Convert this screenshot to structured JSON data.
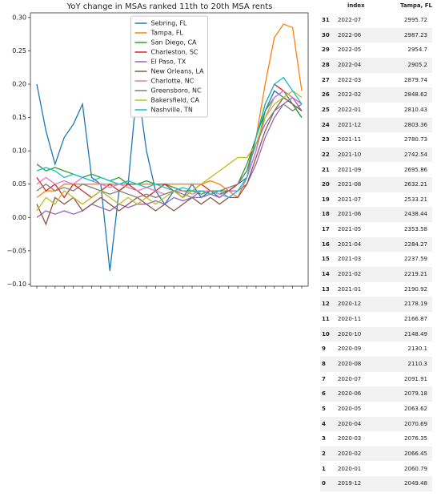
{
  "chart_data": {
    "type": "line",
    "title": "YoY change in MSAs ranked 11th to 20th MSA rents",
    "categories": [
      null,
      null,
      null,
      null,
      null,
      null,
      null,
      null,
      null,
      null,
      null,
      null,
      null,
      null,
      null,
      null,
      null,
      null,
      null,
      null,
      null,
      null,
      null,
      null,
      null,
      null,
      null,
      null,
      null,
      null
    ],
    "ylim": [
      -0.103,
      0.307
    ],
    "yticks": [
      {
        "value": -0.1,
        "label": "−0.10"
      },
      {
        "value": -0.05,
        "label": "−0.05"
      },
      {
        "value": 0,
        "label": "0.00"
      },
      {
        "value": 0.05,
        "label": "0.05"
      },
      {
        "value": 0.1,
        "label": "0.10"
      },
      {
        "value": 0.15,
        "label": "0.15"
      },
      {
        "value": 0.2,
        "label": "0.20"
      },
      {
        "value": 0.25,
        "label": "0.25"
      },
      {
        "value": 0.3,
        "label": "0.30"
      }
    ],
    "grid": false,
    "legend": "upper center",
    "series": [
      {
        "name": "Sebring, FL",
        "color": "#1f77b4",
        "values": [
          0.2,
          0.13,
          0.08,
          0.12,
          0.14,
          0.17,
          0.06,
          0.05,
          -0.08,
          0.04,
          0.05,
          0.2,
          0.1,
          0.04,
          0.02,
          0.04,
          0.03,
          0.05,
          0.03,
          0.04,
          0.03,
          0.04,
          0.05,
          0.06,
          0.1,
          0.16,
          0.19,
          0.18,
          0.17,
          0.15
        ]
      },
      {
        "name": "Tampa, FL",
        "color": "#ff7f0e",
        "values": [
          0.03,
          0.04,
          0.04,
          0.05,
          0.05,
          0.05,
          0.05,
          0.05,
          0.05,
          0.05,
          0.05,
          0.05,
          0.05,
          0.05,
          0.05,
          0.05,
          0.05,
          0.05,
          0.05,
          0.055,
          0.05,
          0.04,
          0.03,
          0.06,
          0.12,
          0.2,
          0.27,
          0.29,
          0.285,
          0.19
        ]
      },
      {
        "name": "San Diego, CA",
        "color": "#2ca02c",
        "values": [
          0.08,
          0.07,
          0.075,
          0.07,
          0.065,
          0.06,
          0.065,
          0.06,
          0.055,
          0.06,
          0.05,
          0.05,
          0.055,
          0.05,
          0.05,
          0.045,
          0.04,
          0.04,
          0.035,
          0.04,
          0.04,
          0.04,
          0.05,
          0.08,
          0.12,
          0.16,
          0.18,
          0.19,
          0.17,
          0.15
        ]
      },
      {
        "name": "Charleston, SC",
        "color": "#d62728",
        "values": [
          0.06,
          0.04,
          0.05,
          0.03,
          0.05,
          0.04,
          0.03,
          0.04,
          0.05,
          0.04,
          0.05,
          0.04,
          0.03,
          0.04,
          0.05,
          0.04,
          0.03,
          0.04,
          0.05,
          0.04,
          0.035,
          0.04,
          0.05,
          0.07,
          0.12,
          0.17,
          0.2,
          0.19,
          0.18,
          0.17
        ]
      },
      {
        "name": "El Paso, TX",
        "color": "#9467bd",
        "values": [
          0.0,
          0.01,
          0.005,
          0.01,
          0.005,
          0.01,
          0.02,
          0.015,
          0.01,
          0.02,
          0.015,
          0.02,
          0.02,
          0.025,
          0.02,
          0.03,
          0.025,
          0.03,
          0.03,
          0.035,
          0.03,
          0.04,
          0.04,
          0.05,
          0.08,
          0.12,
          0.15,
          0.17,
          0.18,
          0.16
        ]
      },
      {
        "name": "New Orleans, LA",
        "color": "#8c564b",
        "values": [
          0.02,
          -0.01,
          0.03,
          0.02,
          0.03,
          0.01,
          0.02,
          0.03,
          0.02,
          0.01,
          0.02,
          0.03,
          0.02,
          0.01,
          0.02,
          0.01,
          0.02,
          0.03,
          0.02,
          0.03,
          0.02,
          0.03,
          0.03,
          0.05,
          0.09,
          0.13,
          0.16,
          0.18,
          0.17,
          0.16
        ]
      },
      {
        "name": "Charlotte, NC",
        "color": "#e377c2",
        "values": [
          0.05,
          0.06,
          0.05,
          0.055,
          0.05,
          0.06,
          0.055,
          0.05,
          0.045,
          0.05,
          0.045,
          0.04,
          0.045,
          0.04,
          0.035,
          0.04,
          0.04,
          0.035,
          0.04,
          0.04,
          0.035,
          0.03,
          0.04,
          0.06,
          0.1,
          0.15,
          0.18,
          0.19,
          0.18,
          0.17
        ]
      },
      {
        "name": "Greensboro, NC",
        "color": "#7f7f7f",
        "values": [
          0.04,
          0.05,
          0.04,
          0.045,
          0.04,
          0.05,
          0.045,
          0.04,
          0.035,
          0.04,
          0.035,
          0.03,
          0.035,
          0.03,
          0.035,
          0.04,
          0.035,
          0.03,
          0.04,
          0.035,
          0.04,
          0.045,
          0.05,
          0.07,
          0.11,
          0.14,
          0.16,
          0.17,
          0.16,
          0.17
        ]
      },
      {
        "name": "Bakersfield, CA",
        "color": "#bcbd22",
        "values": [
          0.01,
          0.03,
          0.02,
          0.04,
          0.03,
          0.02,
          0.03,
          0.04,
          0.03,
          0.02,
          0.03,
          0.02,
          0.03,
          0.02,
          0.03,
          0.04,
          0.03,
          0.04,
          0.05,
          0.06,
          0.07,
          0.08,
          0.09,
          0.09,
          0.11,
          0.15,
          0.17,
          0.18,
          0.19,
          0.18
        ]
      },
      {
        "name": "Nashville, TN",
        "color": "#17becf",
        "values": [
          0.07,
          0.075,
          0.07,
          0.06,
          0.065,
          0.06,
          0.055,
          0.06,
          0.055,
          0.05,
          0.055,
          0.05,
          0.045,
          0.05,
          0.045,
          0.04,
          0.045,
          0.04,
          0.04,
          0.035,
          0.04,
          0.03,
          0.04,
          0.06,
          0.12,
          0.17,
          0.2,
          0.21,
          0.19,
          0.17
        ]
      }
    ]
  },
  "table": {
    "columns": [
      "index",
      "Tampa, FL"
    ],
    "rows": [
      [
        31,
        "2022-07",
        2995.72
      ],
      [
        30,
        "2022-06",
        2987.23
      ],
      [
        29,
        "2022-05",
        2954.7
      ],
      [
        28,
        "2022-04",
        2905.2
      ],
      [
        27,
        "2022-03",
        2879.74
      ],
      [
        26,
        "2022-02",
        2848.62
      ],
      [
        25,
        "2022-01",
        2810.43
      ],
      [
        24,
        "2021-12",
        2803.36
      ],
      [
        23,
        "2021-11",
        2780.73
      ],
      [
        22,
        "2021-10",
        2742.54
      ],
      [
        21,
        "2021-09",
        2695.86
      ],
      [
        20,
        "2021-08",
        2632.21
      ],
      [
        19,
        "2021-07",
        2533.21
      ],
      [
        18,
        "2021-06",
        2438.44
      ],
      [
        17,
        "2021-05",
        2353.58
      ],
      [
        16,
        "2021-04",
        2284.27
      ],
      [
        15,
        "2021-03",
        2237.59
      ],
      [
        14,
        "2021-02",
        2219.21
      ],
      [
        13,
        "2021-01",
        2190.92
      ],
      [
        12,
        "2020-12",
        2178.19
      ],
      [
        11,
        "2020-11",
        2166.87
      ],
      [
        10,
        "2020-10",
        2148.49
      ],
      [
        9,
        "2020-09",
        2130.1
      ],
      [
        8,
        "2020-08",
        2110.3
      ],
      [
        7,
        "2020-07",
        2091.91
      ],
      [
        6,
        "2020-06",
        2079.18
      ],
      [
        5,
        "2020-05",
        2063.62
      ],
      [
        4,
        "2020-04",
        2070.69
      ],
      [
        3,
        "2020-03",
        2076.35
      ],
      [
        2,
        "2020-02",
        2066.45
      ],
      [
        1,
        "2020-01",
        2060.79
      ],
      [
        0,
        "2019-12",
        2049.48
      ]
    ]
  }
}
